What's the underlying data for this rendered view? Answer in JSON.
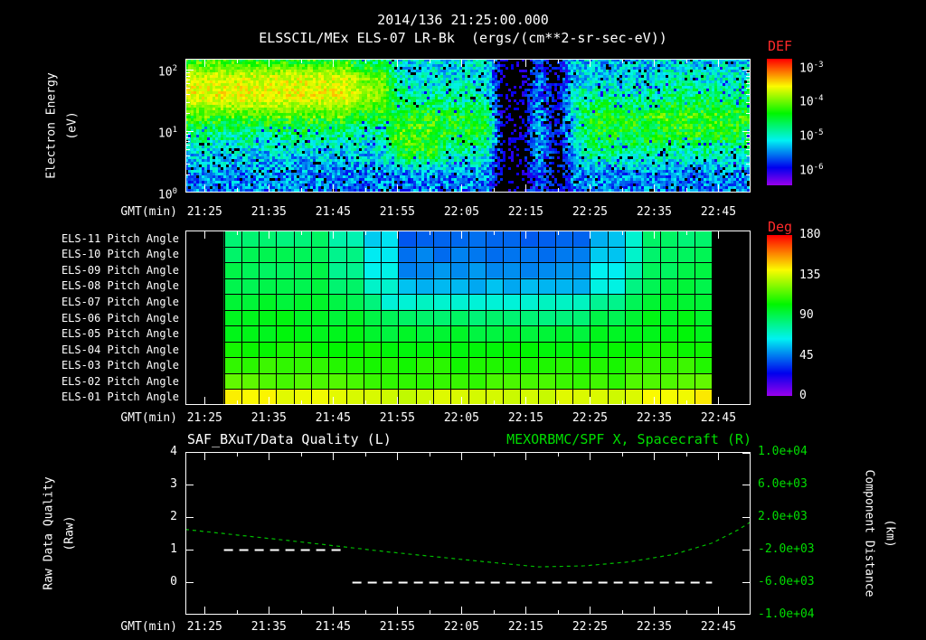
{
  "header": {
    "datetime": "2014/136 21:25:00.000",
    "source_line": "ELSSCIL/MEx ELS-07 LR-Bk  (ergs/(cm**2-sr-sec-eV))"
  },
  "colors": {
    "background": "#000000",
    "text": "#ffffff",
    "red_label": "#ff2a2a",
    "green_label": "#00dd00",
    "green_curve": "#00bb00",
    "white_curve": "#ffffff"
  },
  "time_axis": {
    "label": "GMT(min)",
    "domain": [
      1282,
      1370
    ],
    "minor_step_min": 5,
    "major_ticks": [
      {
        "t": 1285,
        "label": "21:25"
      },
      {
        "t": 1295,
        "label": "21:35"
      },
      {
        "t": 1305,
        "label": "21:45"
      },
      {
        "t": 1315,
        "label": "21:55"
      },
      {
        "t": 1325,
        "label": "22:05"
      },
      {
        "t": 1335,
        "label": "22:15"
      },
      {
        "t": 1345,
        "label": "22:25"
      },
      {
        "t": 1355,
        "label": "22:35"
      },
      {
        "t": 1365,
        "label": "22:45"
      }
    ]
  },
  "chart_data": [
    {
      "id": "energy_spectrogram",
      "type": "heatmap",
      "title": "ELSSCIL/MEx ELS-07 LR-Bk",
      "units": "ergs/(cm**2-sr-sec-eV)",
      "ylabel_lines": [
        "Electron Energy",
        "(eV)"
      ],
      "y_scale": "log",
      "ylim_ev": [
        1,
        150
      ],
      "ytick_exponents": [
        0,
        1,
        2
      ],
      "colorbar": {
        "label": "DEF",
        "tick_exponents": [
          -3,
          -4,
          -5,
          -6
        ],
        "vmin_log10": -6.5,
        "vmax_log10": -2.8,
        "black_below_log10": -6.15
      },
      "time_start": 1285,
      "time_end": 1370,
      "energy_bin_centers_ev": [
        120,
        70,
        40,
        22,
        12,
        6,
        3,
        1.5
      ],
      "values_log10_flux": [
        [
          -4.4,
          -4.4,
          -4.4,
          -4.4,
          -4.4,
          -4.4,
          -4.4,
          -4.4,
          -4.4,
          -4.8,
          -4.8,
          -5.3,
          -5.2,
          -5.2,
          -5.2,
          -5.2,
          -5.2,
          -6.4,
          -6.4,
          -5.8,
          -6.3,
          -5.3,
          -5.3,
          -5.3,
          -5.3,
          -5.3,
          -5.3,
          -5.3,
          -5.3,
          -5.3,
          -5.3,
          -5.3
        ],
        [
          -3.7,
          -3.7,
          -3.7,
          -3.7,
          -3.7,
          -3.7,
          -3.7,
          -3.7,
          -3.7,
          -4.0,
          -4.0,
          -4.9,
          -5.2,
          -5.2,
          -5.2,
          -5.2,
          -5.2,
          -6.4,
          -6.4,
          -5.6,
          -6.3,
          -5.3,
          -5.3,
          -5.3,
          -5.3,
          -5.3,
          -5.1,
          -5.1,
          -5.1,
          -5.1,
          -5.1,
          -5.1
        ],
        [
          -3.6,
          -3.6,
          -3.6,
          -3.6,
          -3.6,
          -3.6,
          -3.6,
          -3.6,
          -3.6,
          -3.9,
          -3.9,
          -4.8,
          -4.9,
          -4.9,
          -4.9,
          -4.9,
          -4.9,
          -6.4,
          -6.4,
          -5.5,
          -6.3,
          -4.9,
          -4.9,
          -4.9,
          -4.9,
          -4.9,
          -4.7,
          -4.7,
          -4.7,
          -4.7,
          -4.7,
          -4.7
        ],
        [
          -4.2,
          -4.2,
          -4.2,
          -4.2,
          -4.2,
          -4.2,
          -4.2,
          -4.2,
          -4.2,
          -4.4,
          -4.4,
          -4.6,
          -4.4,
          -4.4,
          -4.5,
          -4.5,
          -4.5,
          -6.4,
          -6.4,
          -5.4,
          -6.2,
          -5.0,
          -4.4,
          -4.4,
          -4.4,
          -4.4,
          -4.3,
          -4.3,
          -4.3,
          -4.3,
          -4.3,
          -4.3
        ],
        [
          -4.8,
          -4.8,
          -4.8,
          -4.8,
          -4.8,
          -4.8,
          -4.8,
          -4.8,
          -4.8,
          -5.0,
          -5.0,
          -4.2,
          -4.2,
          -4.2,
          -4.5,
          -4.5,
          -4.5,
          -6.4,
          -6.4,
          -5.3,
          -6.2,
          -5.2,
          -4.5,
          -4.5,
          -4.5,
          -4.5,
          -4.4,
          -4.4,
          -4.4,
          -4.4,
          -4.4,
          -4.6
        ],
        [
          -5.3,
          -5.3,
          -5.3,
          -5.3,
          -5.3,
          -5.3,
          -5.3,
          -5.3,
          -5.3,
          -5.3,
          -5.3,
          -4.4,
          -4.4,
          -4.4,
          -5.0,
          -5.0,
          -5.0,
          -6.4,
          -6.4,
          -5.5,
          -6.3,
          -5.4,
          -4.8,
          -4.8,
          -4.8,
          -4.8,
          -5.0,
          -5.0,
          -5.0,
          -5.0,
          -5.0,
          -5.0
        ],
        [
          -5.5,
          -5.5,
          -5.5,
          -5.5,
          -5.5,
          -5.5,
          -5.5,
          -5.5,
          -5.5,
          -5.5,
          -5.5,
          -5.5,
          -5.5,
          -5.5,
          -5.5,
          -5.5,
          -5.5,
          -6.4,
          -6.4,
          -5.6,
          -6.3,
          -5.5,
          -5.5,
          -5.5,
          -5.5,
          -5.5,
          -5.5,
          -5.5,
          -5.5,
          -5.5,
          -5.5,
          -5.5
        ],
        [
          -5.6,
          -5.6,
          -5.6,
          -5.6,
          -5.6,
          -5.6,
          -5.6,
          -5.6,
          -5.6,
          -5.6,
          -5.6,
          -5.6,
          -5.6,
          -5.6,
          -5.6,
          -5.6,
          -5.6,
          -6.4,
          -6.4,
          -5.7,
          -6.3,
          -5.6,
          -5.6,
          -5.6,
          -5.6,
          -5.6,
          -5.6,
          -5.6,
          -5.6,
          -5.6,
          -5.6,
          -5.6
        ]
      ]
    },
    {
      "id": "pitch_angle_panel",
      "type": "heatmap",
      "row_labels": [
        "ELS-11 Pitch Angle",
        "ELS-10 Pitch Angle",
        "ELS-09 Pitch Angle",
        "ELS-08 Pitch Angle",
        "ELS-07 Pitch Angle",
        "ELS-06 Pitch Angle",
        "ELS-05 Pitch Angle",
        "ELS-04 Pitch Angle",
        "ELS-03 Pitch Angle",
        "ELS-02 Pitch Angle",
        "ELS-01 Pitch Angle"
      ],
      "colorbar": {
        "label": "Deg",
        "ticks": [
          180,
          135,
          90,
          45,
          0
        ],
        "vmin": 0,
        "vmax": 180
      },
      "time_start": 1288,
      "time_end": 1364,
      "values_deg": [
        [
          85,
          85,
          85,
          85,
          85,
          85,
          75,
          75,
          60,
          60,
          42,
          42,
          42,
          42,
          42,
          42,
          42,
          42,
          42,
          42,
          42,
          55,
          55,
          70,
          85,
          85,
          85,
          85
        ],
        [
          88,
          88,
          88,
          88,
          88,
          88,
          80,
          80,
          62,
          62,
          45,
          45,
          45,
          45,
          45,
          45,
          45,
          45,
          45,
          45,
          45,
          58,
          58,
          72,
          88,
          88,
          88,
          88
        ],
        [
          90,
          90,
          90,
          90,
          90,
          90,
          82,
          82,
          65,
          65,
          48,
          48,
          48,
          48,
          48,
          48,
          48,
          48,
          48,
          48,
          48,
          62,
          62,
          75,
          90,
          90,
          90,
          90
        ],
        [
          92,
          92,
          92,
          92,
          92,
          92,
          86,
          86,
          72,
          72,
          55,
          55,
          55,
          55,
          55,
          55,
          55,
          55,
          55,
          55,
          55,
          68,
          68,
          80,
          92,
          92,
          92,
          92
        ],
        [
          95,
          95,
          95,
          95,
          95,
          95,
          92,
          92,
          82,
          70,
          70,
          70,
          70,
          70,
          70,
          70,
          70,
          70,
          70,
          70,
          70,
          82,
          82,
          88,
          95,
          95,
          95,
          95
        ],
        [
          98,
          98,
          98,
          98,
          98,
          98,
          96,
          96,
          92,
          88,
          85,
          85,
          85,
          85,
          85,
          85,
          85,
          85,
          85,
          85,
          85,
          90,
          90,
          95,
          98,
          98,
          98,
          98
        ],
        [
          100,
          100,
          100,
          100,
          100,
          100,
          98,
          98,
          96,
          95,
          95,
          95,
          95,
          95,
          95,
          95,
          95,
          95,
          95,
          95,
          95,
          97,
          97,
          98,
          100,
          100,
          100,
          100
        ],
        [
          105,
          105,
          105,
          105,
          105,
          105,
          104,
          104,
          103,
          102,
          102,
          102,
          102,
          102,
          102,
          102,
          102,
          102,
          102,
          102,
          102,
          103,
          103,
          104,
          105,
          105,
          105,
          105
        ],
        [
          110,
          110,
          110,
          110,
          110,
          110,
          109,
          109,
          108,
          108,
          108,
          108,
          108,
          108,
          108,
          108,
          108,
          108,
          108,
          108,
          108,
          108,
          108,
          109,
          110,
          110,
          110,
          110
        ],
        [
          120,
          118,
          116,
          115,
          115,
          115,
          114,
          114,
          112,
          112,
          112,
          112,
          112,
          112,
          112,
          112,
          112,
          112,
          112,
          112,
          112,
          112,
          112,
          113,
          115,
          115,
          116,
          118
        ],
        [
          145,
          143,
          141,
          140,
          140,
          140,
          138,
          138,
          136,
          135,
          135,
          135,
          135,
          135,
          135,
          135,
          135,
          135,
          135,
          135,
          135,
          135,
          136,
          138,
          140,
          140,
          142,
          144
        ]
      ]
    },
    {
      "id": "quality_and_distance",
      "type": "line",
      "title_left": "SAF_BXuT/Data Quality (L)",
      "title_right": "MEXORBMC/SPF X, Spacecraft (R)",
      "ylabel_left_lines": [
        "Raw Data Quality",
        "(Raw)"
      ],
      "ylabel_right_lines": [
        "Component Distance",
        "(km)"
      ],
      "left_axis": {
        "ylim": [
          -1,
          4
        ],
        "ticks": [
          0,
          1,
          2,
          3,
          4
        ]
      },
      "right_axis": {
        "ylim": [
          -10000,
          10000
        ],
        "ticks": [
          {
            "v": 10000,
            "label": "1.0e+04"
          },
          {
            "v": 6000,
            "label": "6.0e+03"
          },
          {
            "v": 2000,
            "label": "2.0e+03"
          },
          {
            "v": -2000,
            "label": "-2.0e+03"
          },
          {
            "v": -6000,
            "label": "-6.0e+03"
          },
          {
            "v": -10000,
            "label": "-1.0e+04"
          }
        ]
      },
      "series": [
        {
          "name": "SAF_BXuT/Data Quality (L)",
          "axis": "left",
          "color": "#ffffff",
          "line_style": "dashed",
          "segments": [
            {
              "value": 1,
              "t_start": 1288,
              "t_end": 1307
            },
            {
              "value": 0,
              "t_start": 1308,
              "t_end": 1364
            }
          ]
        },
        {
          "name": "MEXORBMC/SPF X, Spacecraft (R)",
          "axis": "right",
          "color": "#00bb00",
          "line_style": "dashed",
          "points_t_km": [
            [
              1282,
              480
            ],
            [
              1290,
              -200
            ],
            [
              1298,
              -880
            ],
            [
              1306,
              -1600
            ],
            [
              1314,
              -2320
            ],
            [
              1322,
              -2960
            ],
            [
              1330,
              -3600
            ],
            [
              1337,
              -4120
            ],
            [
              1344,
              -4000
            ],
            [
              1351,
              -3520
            ],
            [
              1358,
              -2600
            ],
            [
              1364,
              -1200
            ],
            [
              1368,
              400
            ],
            [
              1370,
              1400
            ]
          ]
        }
      ]
    }
  ]
}
